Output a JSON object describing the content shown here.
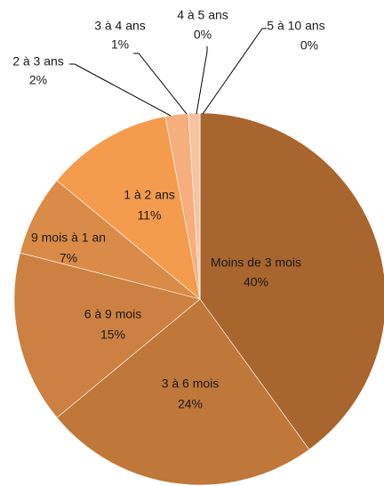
{
  "chart_data": {
    "type": "pie",
    "categories": [
      "Moins de 3 mois",
      "3 à 6 mois",
      "6 à 9 mois",
      "9 mois à 1 an",
      "1 à 2 ans",
      "2 à 3 ans",
      "3 à 4 ans",
      "4 à 5 ans",
      "5 à 10 ans"
    ],
    "values": [
      40,
      24,
      15,
      7,
      11,
      2,
      1,
      0,
      0
    ],
    "value_labels": [
      "40%",
      "24%",
      "15%",
      "7%",
      "11%",
      "2%",
      "1%",
      "0%",
      "0%"
    ],
    "colors": [
      "#a9652e",
      "#c0773a",
      "#cc8142",
      "#d98b47",
      "#f49b4d",
      "#f5ae7c",
      "#f8c39f",
      "#fbd4bb",
      "#fde4d4"
    ]
  }
}
